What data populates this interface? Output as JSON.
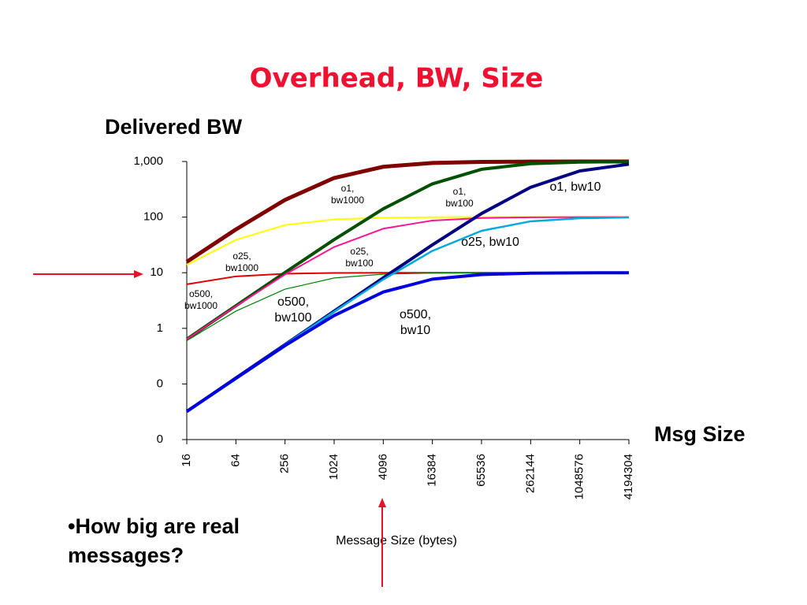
{
  "chart_data": {
    "type": "line",
    "title": "Overhead, BW, Size",
    "y_label": "Delivered BW",
    "x_side_label": "Msg Size",
    "x_label": "Message Size (bytes)",
    "note": "•How big are real messages?",
    "categories": [
      "16",
      "64",
      "256",
      "1024",
      "4096",
      "16384",
      "65536",
      "262144",
      "1048576",
      "4194304"
    ],
    "log_y": true,
    "ylim": [
      0.01,
      1000
    ],
    "yticks": [
      {
        "value": 1000,
        "label": "1,000"
      },
      100,
      10,
      1,
      {
        "value": 0.1,
        "label": "0"
      },
      {
        "value": 0.01,
        "label": "0"
      }
    ],
    "series": [
      {
        "name": "o1, bw1000",
        "color": "#800000",
        "values": [
          15.7,
          60,
          204,
          506,
          804,
          942,
          985,
          996,
          999,
          1000
        ]
      },
      {
        "name": "o1, bw100",
        "color": "#ffff00",
        "values": [
          13.8,
          39,
          72,
          91,
          97.6,
          99.4,
          99.8,
          100,
          100,
          100
        ]
      },
      {
        "name": "o1, bw10",
        "color": "#e00000",
        "values": [
          6.2,
          8.6,
          9.6,
          9.9,
          9.98,
          10,
          10,
          10,
          10,
          10
        ]
      },
      {
        "name": "o25, bw1000",
        "color": "#005000",
        "values": [
          0.64,
          2.55,
          10.1,
          39.4,
          141,
          396,
          724,
          913,
          977,
          994
        ]
      },
      {
        "name": "o25, bw100",
        "color": "#ff1493",
        "values": [
          0.64,
          2.5,
          9.3,
          29,
          62,
          86.8,
          96.4,
          99.1,
          99.8,
          99.9
        ]
      },
      {
        "name": "o25, bw10",
        "color": "#008000",
        "values": [
          0.6,
          2.04,
          5.06,
          8.04,
          9.42,
          9.85,
          9.96,
          10,
          10,
          10
        ]
      },
      {
        "name": "o500, bw1000",
        "color": "#000080",
        "values": [
          0.032,
          0.128,
          0.51,
          2.04,
          8.1,
          31.7,
          116,
          344,
          677,
          894
        ]
      },
      {
        "name": "o500, bw100",
        "color": "#00aadd",
        "values": [
          0.032,
          0.128,
          0.51,
          2.0,
          7.57,
          24.7,
          56.7,
          84,
          95.4,
          98.8
        ]
      },
      {
        "name": "o500, bw10",
        "color": "#0000dd",
        "values": [
          0.032,
          0.126,
          0.49,
          1.7,
          4.5,
          7.66,
          9.29,
          9.81,
          9.95,
          9.99
        ]
      }
    ]
  }
}
